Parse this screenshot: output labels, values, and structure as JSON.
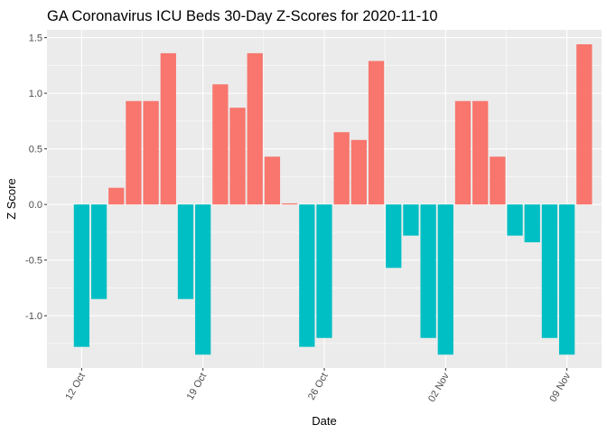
{
  "chart_data": {
    "type": "bar",
    "title": "GA Coronavirus ICU Beds 30-Day Z-Scores for 2020-11-10",
    "xlabel": "Date",
    "ylabel": "Z Score",
    "ylim": [
      -1.47,
      1.57
    ],
    "xlim": [
      "2020-10-10",
      "2020-11-11"
    ],
    "grid": true,
    "legend": "none",
    "colors": {
      "positive": "#F8766D",
      "negative": "#00BFC4",
      "panel": "#EBEBEB",
      "grid": "#FFFFFF"
    },
    "y_ticks": [
      -1.0,
      -0.5,
      0.0,
      0.5,
      1.0,
      1.5
    ],
    "y_tick_labels": [
      "-1.0",
      "-0.5",
      "0.0",
      "0.5",
      "1.0",
      "1.5"
    ],
    "x_ticks": [
      "2020-10-12",
      "2020-10-19",
      "2020-10-26",
      "2020-11-02",
      "2020-11-09"
    ],
    "x_tick_labels": [
      "12 Oct",
      "19 Oct",
      "26 Oct",
      "02 Nov",
      "09 Nov"
    ],
    "x": [
      "2020-10-12",
      "2020-10-13",
      "2020-10-14",
      "2020-10-15",
      "2020-10-16",
      "2020-10-17",
      "2020-10-18",
      "2020-10-19",
      "2020-10-20",
      "2020-10-21",
      "2020-10-22",
      "2020-10-23",
      "2020-10-24",
      "2020-10-25",
      "2020-10-26",
      "2020-10-27",
      "2020-10-28",
      "2020-10-29",
      "2020-10-30",
      "2020-10-31",
      "2020-11-01",
      "2020-11-02",
      "2020-11-03",
      "2020-11-04",
      "2020-11-05",
      "2020-11-06",
      "2020-11-07",
      "2020-11-08",
      "2020-11-09",
      "2020-11-10"
    ],
    "values": [
      -1.28,
      -0.85,
      0.15,
      0.93,
      0.93,
      1.36,
      -0.85,
      -1.35,
      1.08,
      0.87,
      1.36,
      0.43,
      0.01,
      -1.28,
      -1.2,
      0.65,
      0.58,
      1.29,
      -0.57,
      -0.28,
      -1.2,
      -1.35,
      0.93,
      0.93,
      0.43,
      -0.28,
      -0.34,
      -1.2,
      -1.35,
      1.44
    ]
  }
}
